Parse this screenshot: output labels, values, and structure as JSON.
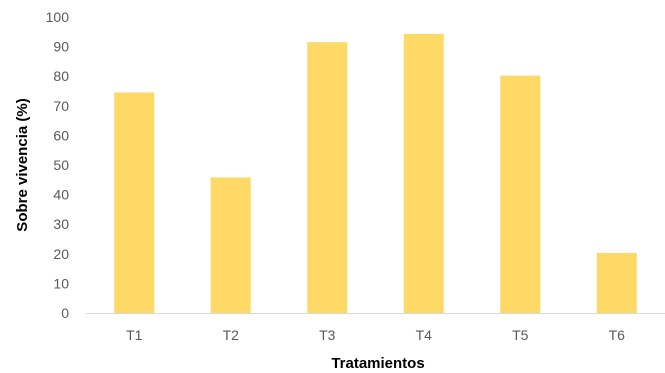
{
  "chart_data": {
    "type": "bar",
    "categories": [
      "T1",
      "T2",
      "T3",
      "T4",
      "T5",
      "T6"
    ],
    "values": [
      74.5,
      45.8,
      91.5,
      94.3,
      80.2,
      20.3
    ],
    "title": "",
    "xlabel": "Tratamientos",
    "ylabel": "Sobre vivencia (%)",
    "ylim": [
      0,
      100
    ],
    "yticks": [
      "0",
      "10",
      "20",
      "30",
      "40",
      "50",
      "60",
      "70",
      "80",
      "90",
      "100"
    ],
    "grid": false,
    "legend": "none",
    "bar_color": "#FFD966",
    "axis_color": "#D9D9D9"
  }
}
